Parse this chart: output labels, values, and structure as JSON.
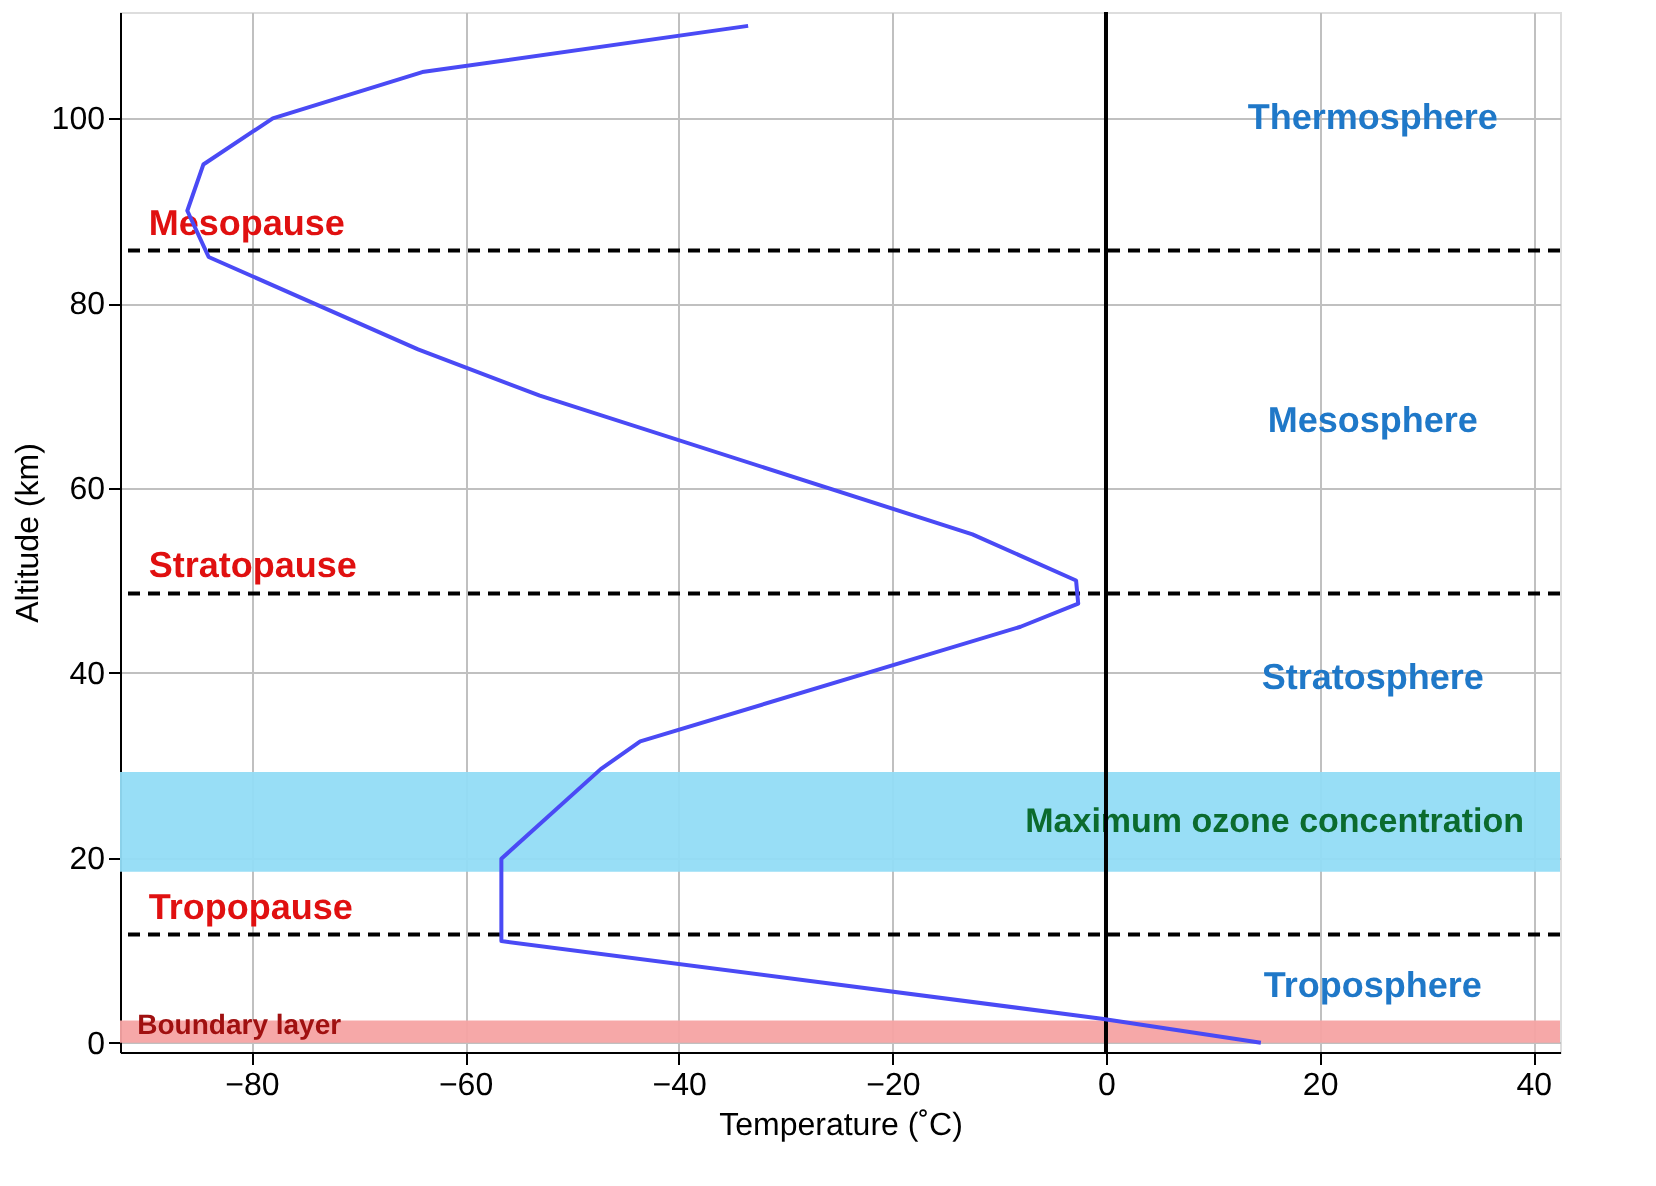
{
  "chart_data": {
    "type": "line",
    "xlabel": "Temperature (˚C)",
    "ylabel": "Altitude (km)",
    "x": [
      14.5,
      -0.4,
      -56.6,
      -56.6,
      -47.3,
      -43.6,
      -8,
      -2.6,
      -2.8,
      -12.5,
      -53,
      -64.4,
      -84,
      -86,
      -84.5,
      -78,
      -64,
      -33.5
    ],
    "series": [
      {
        "color": "#4a4af5",
        "values": [
          0,
          2.6,
          11,
          19.9,
          29.6,
          32.6,
          45,
          47.5,
          50,
          55,
          70,
          75,
          85,
          90,
          95,
          100,
          105,
          110
        ]
      }
    ],
    "xlim": [
      -92.3,
      42.5
    ],
    "ylim": [
      -1,
      111.5
    ],
    "xticks": [
      -80,
      -60,
      -40,
      -20,
      0,
      20,
      40
    ],
    "yticks": [
      0,
      20,
      40,
      60,
      80,
      100
    ],
    "grid": true,
    "marker": "none",
    "line_style": "solid",
    "ref_lines": [
      {
        "axis": "x",
        "value": 0,
        "color": "#000000",
        "line_style": "solid"
      },
      {
        "axis": "y",
        "value": 85.7,
        "label": "Mesopause",
        "color": "#000000",
        "line_style": "dashed"
      },
      {
        "axis": "y",
        "value": 48.6,
        "label": "Stratopause",
        "color": "#000000",
        "line_style": "dashed"
      },
      {
        "axis": "y",
        "value": 11.7,
        "label": "Tropopause",
        "color": "#000000",
        "line_style": "dashed"
      }
    ],
    "bands": [
      {
        "axis": "y",
        "from": 18.5,
        "to": 29.3,
        "label": "Maximum ozone concentration",
        "color": "#92dcf6"
      },
      {
        "axis": "y",
        "from": 0,
        "to": 2.4,
        "label": "Boundary layer",
        "color": "#f6a3a3"
      }
    ],
    "annotations": [
      "Thermosphere",
      "Mesosphere",
      "Stratosphere",
      "Troposphere"
    ]
  }
}
